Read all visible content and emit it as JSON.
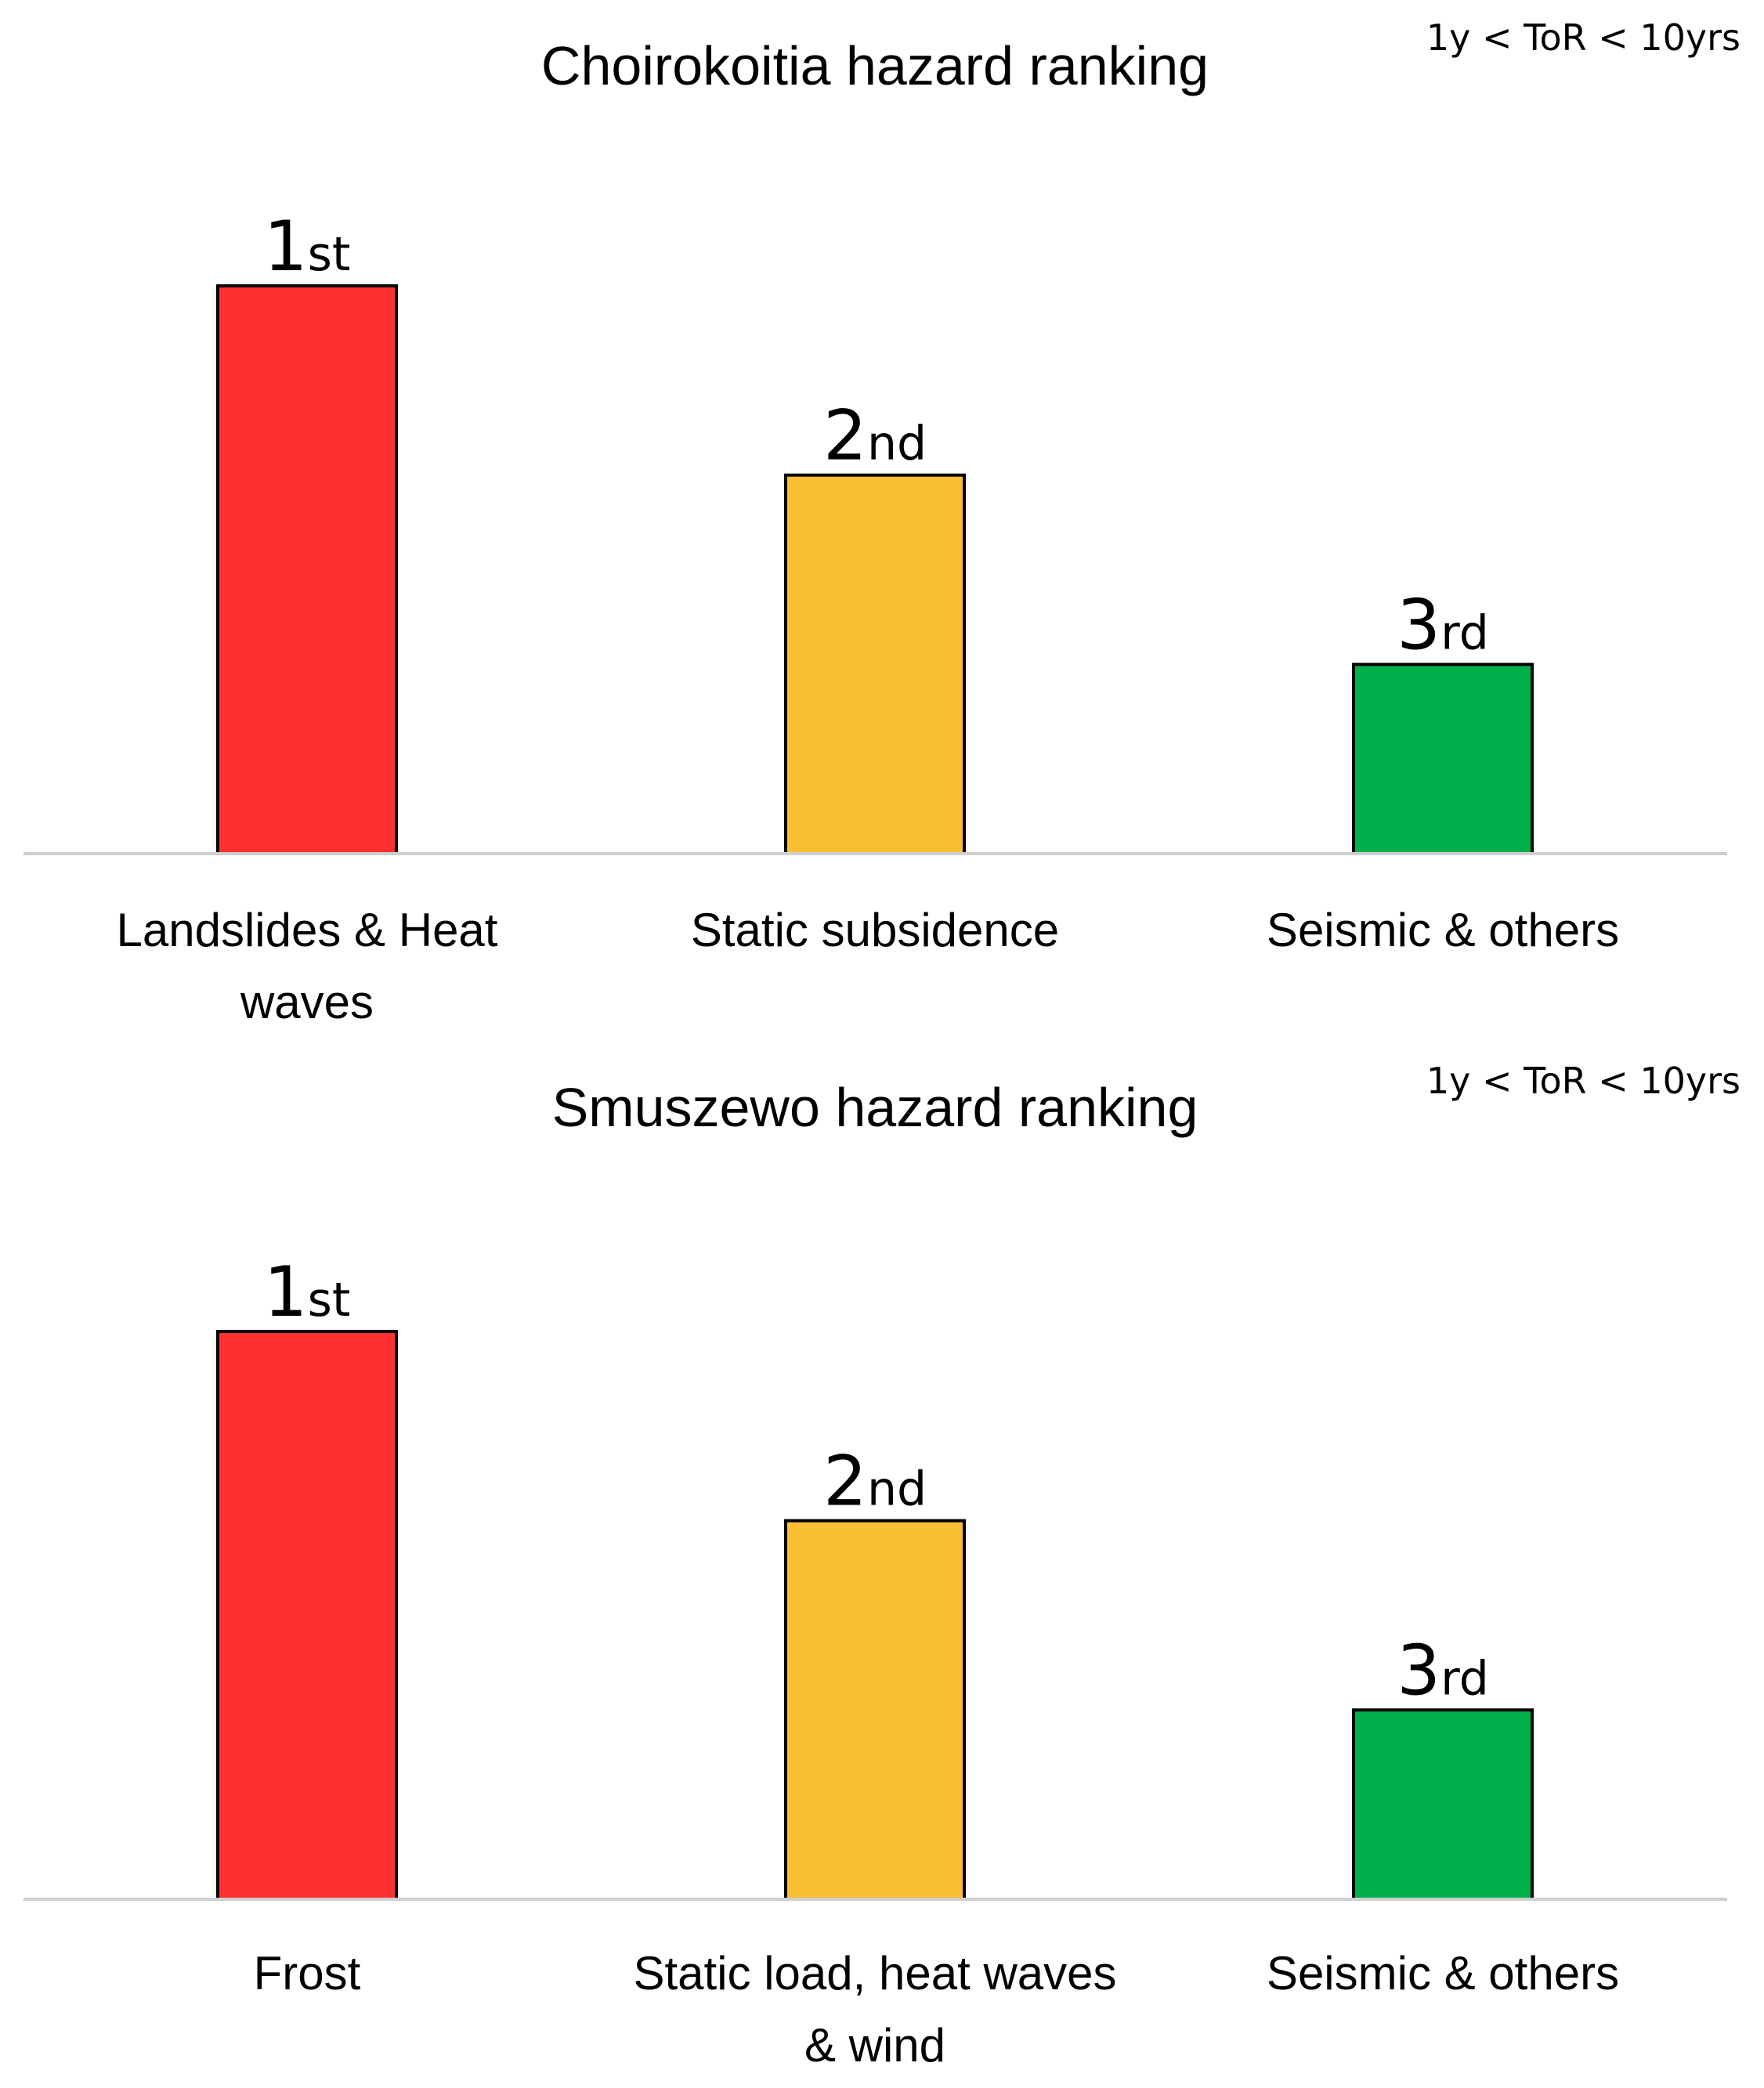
{
  "chart_data": [
    {
      "type": "bar",
      "title": "Choirokoitia hazard ranking",
      "annotation": "1y < ToR < 10yrs",
      "categories": [
        [
          "Landslides & Heat",
          "waves"
        ],
        [
          "Static subsidence"
        ],
        [
          "Seismic & others"
        ]
      ],
      "values": [
        3,
        2,
        1
      ],
      "ylim": [
        0,
        3.6
      ],
      "rank_labels": [
        {
          "num": "1",
          "suffix": "st"
        },
        {
          "num": "2",
          "suffix": "nd"
        },
        {
          "num": "3",
          "suffix": "rd"
        }
      ],
      "colors": [
        "#ff3030",
        "#fbbf36",
        "#00b14b"
      ],
      "grid": false,
      "xlabel": "",
      "ylabel": ""
    },
    {
      "type": "bar",
      "title": "Smuszewo hazard ranking",
      "annotation": "1y < ToR < 10yrs",
      "categories": [
        [
          "Frost"
        ],
        [
          "Static load, heat waves",
          "& wind"
        ],
        [
          "Seismic & others"
        ]
      ],
      "values": [
        3,
        2,
        1
      ],
      "ylim": [
        0,
        3.6
      ],
      "rank_labels": [
        {
          "num": "1",
          "suffix": "st"
        },
        {
          "num": "2",
          "suffix": "nd"
        },
        {
          "num": "3",
          "suffix": "rd"
        }
      ],
      "colors": [
        "#ff3030",
        "#fbbf36",
        "#00b14b"
      ],
      "grid": false,
      "xlabel": "",
      "ylabel": ""
    }
  ]
}
